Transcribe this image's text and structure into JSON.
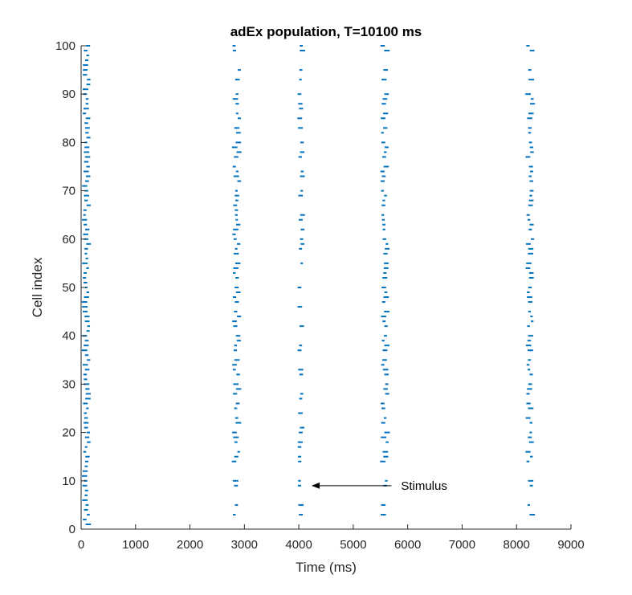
{
  "chart_data": {
    "type": "scatter",
    "title": "adEx population, T=10100 ms",
    "xlabel": "Time (ms)",
    "ylabel": "Cell index",
    "xlim": [
      0,
      9000
    ],
    "ylim": [
      0,
      100
    ],
    "xticks": [
      0,
      1000,
      2000,
      3000,
      4000,
      5000,
      6000,
      7000,
      8000,
      9000
    ],
    "yticks": [
      0,
      10,
      20,
      30,
      40,
      50,
      60,
      70,
      80,
      90,
      100
    ],
    "xtick_labels": [
      "0",
      "1000",
      "2000",
      "3000",
      "4000",
      "5000",
      "6000",
      "7000",
      "8000",
      "9000"
    ],
    "ytick_labels": [
      "0",
      "10",
      "20",
      "30",
      "40",
      "50",
      "60",
      "70",
      "80",
      "90",
      "100"
    ],
    "grid": false,
    "legend": "none",
    "marker": "short horizontal dash (spike raster)",
    "color": "#0072BD",
    "series": [
      {
        "x_center": 100,
        "x_jitter": 80,
        "cells": [
          1,
          2,
          3,
          4,
          5,
          6,
          7,
          8,
          9,
          10,
          11,
          12,
          13,
          14,
          15,
          16,
          17,
          18,
          19,
          20,
          21,
          22,
          23,
          24,
          25,
          26,
          27,
          28,
          29,
          30,
          31,
          32,
          33,
          34,
          35,
          36,
          37,
          38,
          39,
          40,
          41,
          42,
          43,
          44,
          45,
          46,
          47,
          48,
          49,
          50,
          51,
          52,
          53,
          54,
          55,
          56,
          57,
          58,
          59,
          60,
          61,
          62,
          63,
          64,
          65,
          66,
          67,
          68,
          69,
          70,
          71,
          72,
          73,
          74,
          75,
          76,
          77,
          78,
          79,
          80,
          81,
          82,
          83,
          84,
          85,
          86,
          87,
          88,
          89,
          90,
          91,
          92,
          93,
          94,
          95,
          96,
          97,
          98,
          99,
          100
        ]
      },
      {
        "x_center": 2860,
        "x_jitter": 100,
        "cells": [
          3,
          5,
          9,
          10,
          14,
          15,
          16,
          18,
          19,
          20,
          22,
          23,
          25,
          26,
          28,
          29,
          30,
          32,
          33,
          34,
          35,
          37,
          38,
          39,
          40,
          42,
          43,
          44,
          45,
          47,
          48,
          49,
          50,
          52,
          53,
          54,
          55,
          57,
          58,
          59,
          60,
          61,
          62,
          63,
          64,
          65,
          66,
          67,
          68,
          69,
          70,
          72,
          73,
          74,
          75,
          77,
          78,
          79,
          80,
          82,
          83,
          85,
          86,
          88,
          89,
          90,
          93,
          95,
          99,
          100
        ]
      },
      {
        "x_center": 4040,
        "x_jitter": 60,
        "cells": [
          3,
          5,
          9,
          10,
          14,
          15,
          17,
          18,
          20,
          21,
          24,
          27,
          28,
          32,
          33,
          37,
          38,
          42,
          46,
          50,
          55,
          58,
          59,
          60,
          62,
          64,
          65,
          69,
          70,
          73,
          74,
          77,
          78,
          80,
          83,
          85,
          87,
          88,
          90,
          93,
          95,
          99,
          100
        ]
      },
      {
        "x_center": 5580,
        "x_jitter": 90,
        "cells": [
          3,
          5,
          9,
          10,
          14,
          15,
          16,
          18,
          19,
          20,
          22,
          23,
          25,
          26,
          28,
          29,
          30,
          32,
          33,
          34,
          35,
          37,
          38,
          39,
          40,
          42,
          43,
          44,
          45,
          47,
          48,
          49,
          50,
          52,
          53,
          54,
          55,
          57,
          58,
          59,
          60,
          62,
          63,
          64,
          65,
          67,
          68,
          69,
          70,
          72,
          73,
          74,
          75,
          77,
          78,
          79,
          80,
          82,
          83,
          85,
          86,
          88,
          89,
          90,
          93,
          95,
          99,
          100
        ]
      },
      {
        "x_center": 8250,
        "x_jitter": 90,
        "cells": [
          3,
          5,
          9,
          10,
          14,
          15,
          16,
          18,
          19,
          20,
          22,
          23,
          25,
          26,
          28,
          29,
          30,
          32,
          33,
          34,
          35,
          37,
          38,
          39,
          40,
          42,
          43,
          44,
          45,
          47,
          48,
          49,
          50,
          52,
          53,
          54,
          55,
          57,
          58,
          59,
          60,
          62,
          63,
          64,
          65,
          67,
          68,
          69,
          70,
          72,
          73,
          74,
          75,
          77,
          78,
          79,
          80,
          82,
          83,
          85,
          86,
          88,
          89,
          90,
          93,
          95,
          99,
          100
        ]
      }
    ],
    "annotations": [
      {
        "text": "Stimulus",
        "arrow_from": [
          5700,
          9
        ],
        "arrow_to": [
          4250,
          9
        ]
      }
    ]
  }
}
